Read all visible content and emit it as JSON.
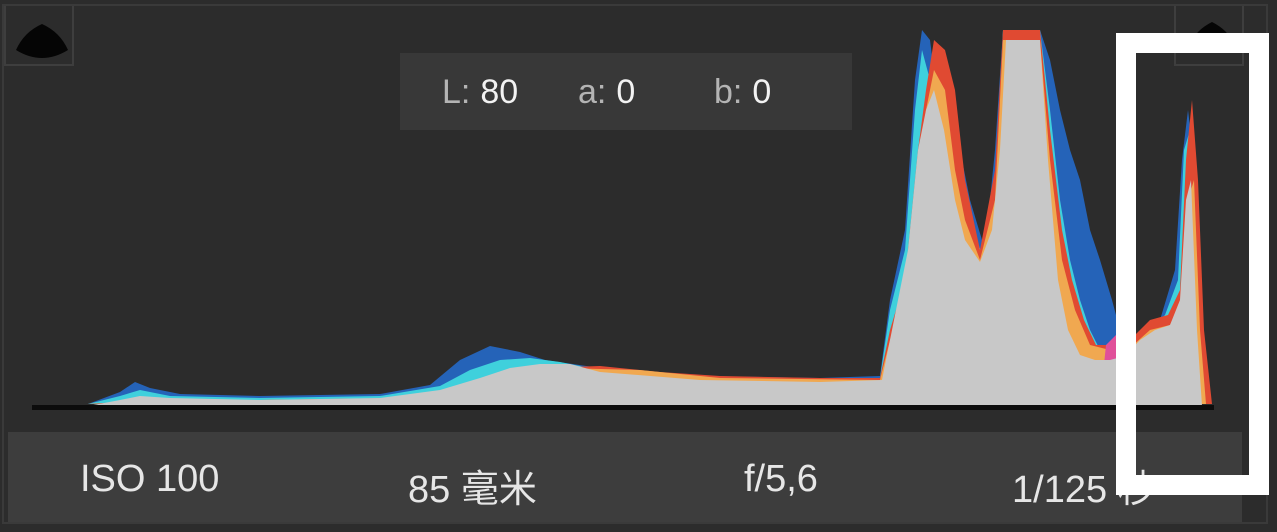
{
  "readout": {
    "l_label": "L:",
    "l_value": "80",
    "a_label": "a:",
    "a_value": "0",
    "b_label": "b:",
    "b_value": "0"
  },
  "clipping": {
    "shadow_icon": "shadow-clipping-warning-icon",
    "highlight_icon": "highlight-clipping-warning-icon"
  },
  "info": {
    "iso": "ISO 100",
    "focal_length": "85 毫米",
    "aperture": "f/5,6",
    "shutter": "1/125 秒"
  },
  "colors": {
    "background": "#2c2c2c",
    "luminance": "#c8c8c8",
    "blue": "#2563b8",
    "cyan": "#3fd0dc",
    "red": "#e04a32",
    "orange": "#f0a850",
    "magenta": "#e0509a",
    "highlight_box": "#ffffff"
  }
}
